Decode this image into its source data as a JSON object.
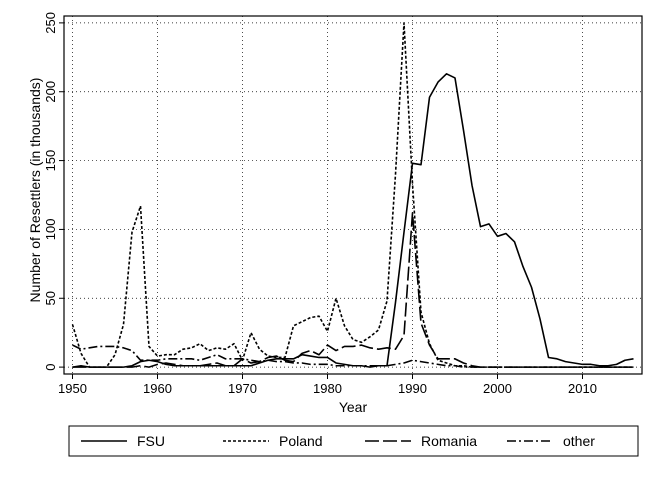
{
  "chart_data": {
    "type": "line",
    "title": "",
    "xlabel": "Year",
    "ylabel": "Number of Resettlers (in thousands)",
    "xlim": [
      1949,
      2017
    ],
    "ylim": [
      -5,
      255
    ],
    "xticks": [
      1950,
      1960,
      1970,
      1980,
      1990,
      2000,
      2010
    ],
    "yticks": [
      0,
      50,
      100,
      150,
      200,
      250
    ],
    "grid": true,
    "legend_position": "bottom",
    "series": [
      {
        "name": "FSU",
        "dash": "solid",
        "x": [
          1950,
          1951,
          1952,
          1953,
          1954,
          1955,
          1956,
          1957,
          1958,
          1959,
          1960,
          1961,
          1962,
          1963,
          1964,
          1965,
          1966,
          1967,
          1968,
          1969,
          1970,
          1971,
          1972,
          1973,
          1974,
          1975,
          1976,
          1977,
          1978,
          1979,
          1980,
          1981,
          1982,
          1983,
          1984,
          1985,
          1986,
          1987,
          1988,
          1989,
          1990,
          1991,
          1992,
          1993,
          1994,
          1995,
          1996,
          1997,
          1998,
          1999,
          2000,
          2001,
          2002,
          2003,
          2004,
          2005,
          2006,
          2007,
          2008,
          2009,
          2010,
          2011,
          2012,
          2013,
          2014,
          2015,
          2016
        ],
        "values": [
          0,
          1,
          0,
          0,
          0,
          0,
          0,
          1,
          4,
          5,
          4,
          2,
          1,
          1,
          1,
          1,
          1,
          1,
          1,
          1,
          1,
          1,
          3,
          5,
          6,
          6,
          6,
          9,
          8,
          7,
          7,
          3,
          2,
          1,
          1,
          0,
          1,
          1,
          47,
          98,
          148,
          147,
          196,
          207,
          213,
          210,
          172,
          132,
          102,
          104,
          95,
          97,
          91,
          73,
          58,
          35,
          7,
          6,
          4,
          3,
          2,
          2,
          1,
          1,
          2,
          5,
          6
        ]
      },
      {
        "name": "Poland",
        "dash": "short",
        "x": [
          1950,
          1951,
          1952,
          1953,
          1954,
          1955,
          1956,
          1957,
          1958,
          1959,
          1960,
          1961,
          1962,
          1963,
          1964,
          1965,
          1966,
          1967,
          1968,
          1969,
          1970,
          1971,
          1972,
          1973,
          1974,
          1975,
          1976,
          1977,
          1978,
          1979,
          1980,
          1981,
          1982,
          1983,
          1984,
          1985,
          1986,
          1987,
          1988,
          1989,
          1990,
          1991,
          1992,
          1993,
          1994,
          1995,
          1996,
          1997,
          1998,
          1999,
          2000,
          2001,
          2002,
          2003,
          2004,
          2005,
          2006,
          2007,
          2008,
          2009,
          2010,
          2011,
          2012,
          2013,
          2014,
          2015,
          2016
        ],
        "values": [
          31,
          10,
          0,
          0,
          0,
          9,
          31,
          98,
          117,
          15,
          8,
          9,
          9,
          13,
          14,
          17,
          12,
          14,
          13,
          17,
          5,
          25,
          13,
          8,
          7,
          7,
          30,
          33,
          36,
          37,
          26,
          50,
          30,
          20,
          18,
          22,
          27,
          48,
          140,
          250,
          133,
          40,
          17,
          5,
          3,
          1,
          1,
          0,
          0,
          0,
          0,
          0,
          0,
          0,
          0,
          0,
          0,
          0,
          0,
          0,
          0,
          0,
          0,
          0,
          0,
          0,
          0
        ]
      },
      {
        "name": "Romania",
        "dash": "long",
        "x": [
          1950,
          1951,
          1952,
          1953,
          1954,
          1955,
          1956,
          1957,
          1958,
          1959,
          1960,
          1961,
          1962,
          1963,
          1964,
          1965,
          1966,
          1967,
          1968,
          1969,
          1970,
          1971,
          1972,
          1973,
          1974,
          1975,
          1976,
          1977,
          1978,
          1979,
          1980,
          1981,
          1982,
          1983,
          1984,
          1985,
          1986,
          1987,
          1988,
          1989,
          1990,
          1991,
          1992,
          1993,
          1994,
          1995,
          1996,
          1997,
          1998,
          1999,
          2000,
          2001,
          2002,
          2003,
          2004,
          2005,
          2006,
          2007,
          2008,
          2009,
          2010,
          2011,
          2012,
          2013,
          2014,
          2015,
          2016
        ],
        "values": [
          0,
          0,
          0,
          0,
          0,
          0,
          0,
          0,
          1,
          0,
          2,
          3,
          2,
          1,
          1,
          1,
          2,
          3,
          1,
          1,
          6,
          3,
          4,
          7,
          8,
          5,
          4,
          10,
          12,
          9,
          16,
          12,
          15,
          15,
          16,
          14,
          13,
          14,
          13,
          23,
          112,
          32,
          16,
          6,
          6,
          6,
          3,
          1,
          0,
          0,
          0,
          0,
          0,
          0,
          0,
          0,
          0,
          0,
          0,
          0,
          0,
          0,
          0,
          0,
          0,
          0,
          0
        ]
      },
      {
        "name": "other",
        "dash": "dashdot",
        "x": [
          1950,
          1951,
          1952,
          1953,
          1954,
          1955,
          1956,
          1957,
          1958,
          1959,
          1960,
          1961,
          1962,
          1963,
          1964,
          1965,
          1966,
          1967,
          1968,
          1969,
          1970,
          1971,
          1972,
          1973,
          1974,
          1975,
          1976,
          1977,
          1978,
          1979,
          1980,
          1981,
          1982,
          1983,
          1984,
          1985,
          1986,
          1987,
          1988,
          1989,
          1990,
          1991,
          1992,
          1993,
          1994,
          1995,
          1996,
          1997,
          1998,
          1999,
          2000,
          2001,
          2002,
          2003,
          2004,
          2005,
          2006,
          2007,
          2008,
          2009,
          2010,
          2011,
          2012,
          2013,
          2014,
          2015,
          2016
        ],
        "values": [
          16,
          13,
          14,
          15,
          15,
          15,
          14,
          12,
          5,
          5,
          5,
          6,
          6,
          6,
          6,
          5,
          7,
          9,
          6,
          6,
          6,
          5,
          4,
          5,
          4,
          4,
          3,
          3,
          2,
          2,
          2,
          1,
          1,
          1,
          1,
          1,
          1,
          1,
          2,
          3,
          5,
          4,
          3,
          2,
          1,
          1,
          0,
          0,
          0,
          0,
          0,
          0,
          0,
          0,
          0,
          0,
          0,
          0,
          0,
          0,
          0,
          0,
          0,
          0,
          0,
          0,
          0
        ]
      }
    ]
  }
}
